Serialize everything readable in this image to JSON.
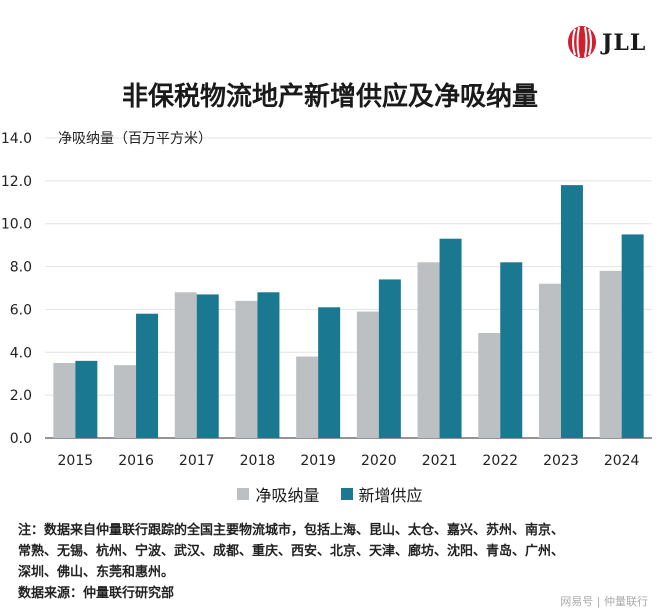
{
  "brand": {
    "logo_text": "JLL",
    "logo_color": "#d11f2f"
  },
  "header": {
    "title": "非保税物流地产新增供应及净吸纳量"
  },
  "chart_data": {
    "type": "bar",
    "title": "非保税物流地产新增供应及净吸纳量",
    "ylabel": "净吸纳量（百万平方米）",
    "xlabel": "",
    "ylim": [
      0,
      14
    ],
    "yticks": [
      "0.0",
      "2.0",
      "4.0",
      "6.0",
      "8.0",
      "10.0",
      "12.0",
      "14.0"
    ],
    "grid": true,
    "legend_position": "bottom",
    "categories": [
      "2015",
      "2016",
      "2017",
      "2018",
      "2019",
      "2020",
      "2021",
      "2022",
      "2023",
      "2024"
    ],
    "series": [
      {
        "name": "净吸纳量",
        "color": "#bcc0c2",
        "values": [
          3.5,
          3.4,
          6.8,
          6.4,
          3.8,
          5.9,
          8.2,
          4.9,
          7.2,
          7.8
        ]
      },
      {
        "name": "新增供应",
        "color": "#1a7891",
        "values": [
          3.6,
          5.8,
          6.7,
          6.8,
          6.1,
          7.4,
          9.3,
          8.2,
          11.8,
          9.5
        ]
      }
    ]
  },
  "footnote": {
    "lines": [
      "注：数据来自仲量联行跟踪的全国主要物流城市，包括上海、昆山、太仓、嘉兴、苏州、南京、",
      "常熟、无锡、杭州、宁波、武汉、成都、重庆、西安、北京、天津、廊坊、沈阳、青岛、广州、",
      "深圳、佛山、东莞和惠州。",
      "数据来源：仲量联行研究部"
    ]
  },
  "watermark": "网易号 | 仲量联行"
}
